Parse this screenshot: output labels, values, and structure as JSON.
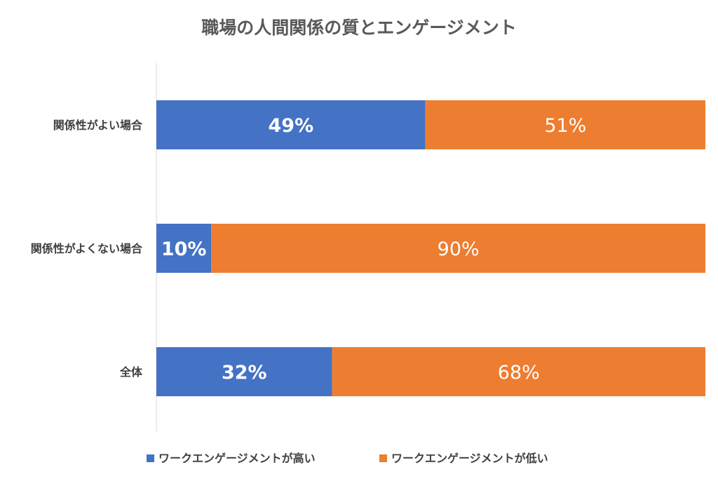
{
  "chart_data": {
    "type": "bar",
    "orientation": "horizontal",
    "stacked": true,
    "title": "職場の人間関係の質とエンゲージメント",
    "categories": [
      "関係性がよい場合",
      "関係性がよくない場合",
      "全体"
    ],
    "series": [
      {
        "name": "ワークエンゲージメントが高い",
        "values": [
          49,
          10,
          32
        ],
        "labels": [
          "49%",
          "10%",
          "32%"
        ],
        "color": "#4472C4"
      },
      {
        "name": "ワークエンゲージメントが低い",
        "values": [
          51,
          90,
          68
        ],
        "labels": [
          "51%",
          "90%",
          "68%"
        ],
        "color": "#ED7D31"
      }
    ],
    "xlim": [
      0,
      100
    ],
    "grid": false,
    "legend_position": "bottom"
  }
}
